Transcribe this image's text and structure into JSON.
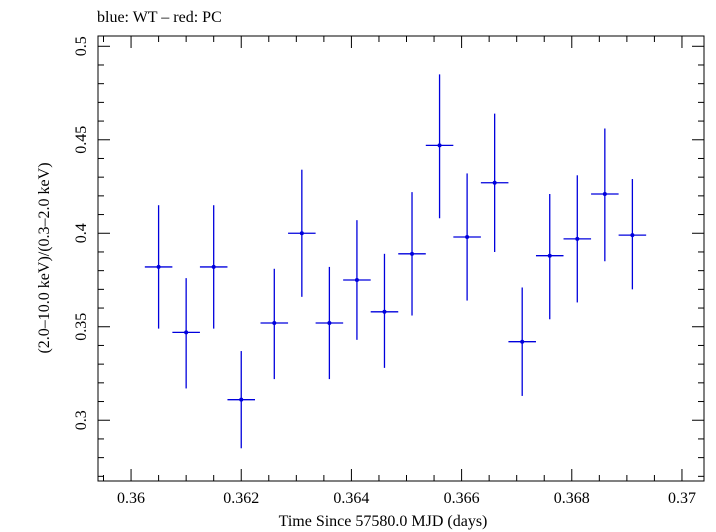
{
  "chart_data": {
    "type": "scatter",
    "title": "blue: WT – red: PC",
    "xlabel": "Time Since 57580.0 MJD (days)",
    "ylabel": "(2.0–10.0 keV)/(0.3–2.0 keV)",
    "xlim": [
      0.3594,
      0.3704
    ],
    "ylim": [
      0.2675,
      0.5055
    ],
    "xticks": [
      "0.36",
      "0.362",
      "0.364",
      "0.366",
      "0.368",
      "0.37"
    ],
    "yticks": [
      "0.3",
      "0.35",
      "0.4",
      "0.45",
      "0.5"
    ],
    "grid": false,
    "series": [
      {
        "name": "WT",
        "color": "#0000dd",
        "points": [
          {
            "x": 0.3605,
            "xerr": 0.00025,
            "y": 0.382,
            "ylo": 0.349,
            "yhi": 0.415
          },
          {
            "x": 0.361,
            "xerr": 0.00025,
            "y": 0.347,
            "ylo": 0.317,
            "yhi": 0.376
          },
          {
            "x": 0.3615,
            "xerr": 0.00025,
            "y": 0.382,
            "ylo": 0.349,
            "yhi": 0.415
          },
          {
            "x": 0.362,
            "xerr": 0.00025,
            "y": 0.311,
            "ylo": 0.285,
            "yhi": 0.337
          },
          {
            "x": 0.3626,
            "xerr": 0.00025,
            "y": 0.352,
            "ylo": 0.322,
            "yhi": 0.381
          },
          {
            "x": 0.3631,
            "xerr": 0.00025,
            "y": 0.4,
            "ylo": 0.366,
            "yhi": 0.434
          },
          {
            "x": 0.3636,
            "xerr": 0.00025,
            "y": 0.352,
            "ylo": 0.322,
            "yhi": 0.382
          },
          {
            "x": 0.3641,
            "xerr": 0.00025,
            "y": 0.375,
            "ylo": 0.343,
            "yhi": 0.407
          },
          {
            "x": 0.3646,
            "xerr": 0.00025,
            "y": 0.358,
            "ylo": 0.328,
            "yhi": 0.389
          },
          {
            "x": 0.3651,
            "xerr": 0.00025,
            "y": 0.389,
            "ylo": 0.356,
            "yhi": 0.422
          },
          {
            "x": 0.3656,
            "xerr": 0.00025,
            "y": 0.447,
            "ylo": 0.408,
            "yhi": 0.485
          },
          {
            "x": 0.3661,
            "xerr": 0.00025,
            "y": 0.398,
            "ylo": 0.364,
            "yhi": 0.432
          },
          {
            "x": 0.3666,
            "xerr": 0.00025,
            "y": 0.427,
            "ylo": 0.39,
            "yhi": 0.464
          },
          {
            "x": 0.3671,
            "xerr": 0.00025,
            "y": 0.342,
            "ylo": 0.313,
            "yhi": 0.371
          },
          {
            "x": 0.3676,
            "xerr": 0.00025,
            "y": 0.388,
            "ylo": 0.354,
            "yhi": 0.421
          },
          {
            "x": 0.3681,
            "xerr": 0.00025,
            "y": 0.397,
            "ylo": 0.363,
            "yhi": 0.431
          },
          {
            "x": 0.3686,
            "xerr": 0.00025,
            "y": 0.421,
            "ylo": 0.385,
            "yhi": 0.456
          },
          {
            "x": 0.3691,
            "xerr": 0.00025,
            "y": 0.399,
            "ylo": 0.37,
            "yhi": 0.429
          }
        ]
      }
    ]
  }
}
